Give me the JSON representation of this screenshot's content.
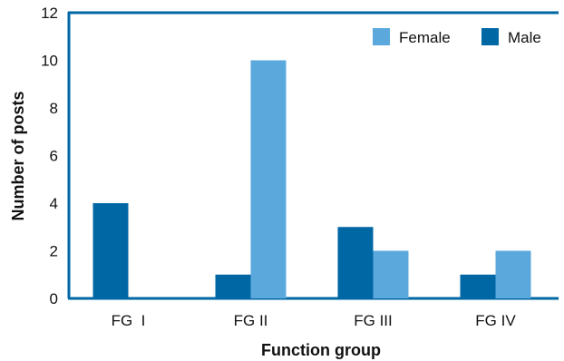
{
  "chart_data": {
    "type": "bar",
    "title": "",
    "xlabel": "Function group",
    "ylabel": "Number of posts",
    "categories": [
      "FG  I",
      "FG II",
      "FG III",
      "FG IV"
    ],
    "series": [
      {
        "name": "Male",
        "values": [
          4,
          1,
          3,
          1
        ],
        "color": "#0067a5"
      },
      {
        "name": "Female",
        "values": [
          0,
          10,
          2,
          2
        ],
        "color": "#5aa8dc"
      }
    ],
    "ylim": [
      0,
      12
    ],
    "yticks": [
      0,
      2,
      4,
      6,
      8,
      10,
      12
    ],
    "grid": false,
    "legend": {
      "position": "top-right",
      "order": [
        "Female",
        "Male"
      ]
    },
    "axis_color": "#0067a5"
  }
}
